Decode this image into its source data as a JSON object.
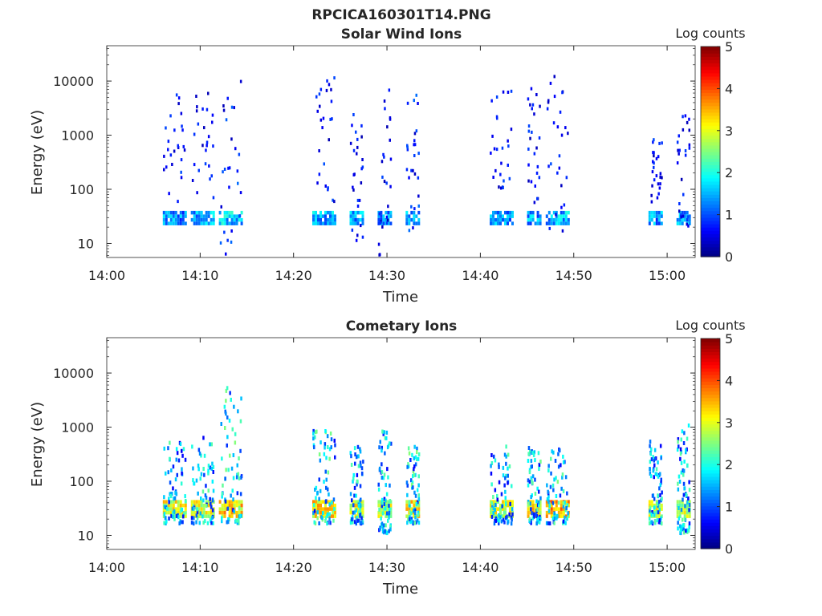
{
  "figure": {
    "title": "RPCICA160301T14.PNG"
  },
  "chart_data": [
    {
      "type": "heatmap",
      "title": "Solar Wind Ions",
      "xlabel": "Time",
      "ylabel": "Energy (eV)",
      "y_scale": "log",
      "x_range": [
        "14:00",
        "15:03"
      ],
      "y_range_eV": [
        5.5,
        45000
      ],
      "x_ticks": [
        "14:00",
        "14:10",
        "14:20",
        "14:30",
        "14:40",
        "14:50",
        "15:00"
      ],
      "y_ticks": [
        "10",
        "100",
        "1000",
        "10000"
      ],
      "colorbar": {
        "label": "Log counts",
        "range": [
          0,
          5
        ],
        "ticks": [
          "0",
          "1",
          "2",
          "3",
          "4",
          "5"
        ],
        "colormap": "jet"
      },
      "grid": false,
      "bursts": [
        {
          "start": "14:06",
          "end": "14:08",
          "band_eV": [
            25,
            40
          ],
          "band_log_counts": 1.3,
          "scatter_eV": [
            60,
            6000
          ],
          "scatter_log_counts": 0.6
        },
        {
          "start": "14:09",
          "end": "14:11",
          "band_eV": [
            25,
            40
          ],
          "band_log_counts": 1.4,
          "scatter_eV": [
            60,
            10000
          ],
          "scatter_log_counts": 0.6
        },
        {
          "start": "14:12",
          "end": "14:14",
          "band_eV": [
            25,
            40
          ],
          "band_log_counts": 1.6,
          "scatter_eV": [
            6,
            14000
          ],
          "scatter_log_counts": 0.7
        },
        {
          "start": "14:22",
          "end": "14:24",
          "band_eV": [
            25,
            40
          ],
          "band_log_counts": 1.5,
          "scatter_eV": [
            60,
            13000
          ],
          "scatter_log_counts": 0.6
        },
        {
          "start": "14:26",
          "end": "14:27",
          "band_eV": [
            25,
            40
          ],
          "band_log_counts": 1.4,
          "scatter_eV": [
            12,
            4000
          ],
          "scatter_log_counts": 0.6
        },
        {
          "start": "14:29",
          "end": "14:30",
          "band_eV": [
            25,
            40
          ],
          "band_log_counts": 1.4,
          "scatter_eV": [
            6,
            10000
          ],
          "scatter_log_counts": 0.6
        },
        {
          "start": "14:32",
          "end": "14:33",
          "band_eV": [
            25,
            40
          ],
          "band_log_counts": 1.5,
          "scatter_eV": [
            15,
            6000
          ],
          "scatter_log_counts": 0.7
        },
        {
          "start": "14:41",
          "end": "14:43",
          "band_eV": [
            25,
            40
          ],
          "band_log_counts": 1.3,
          "scatter_eV": [
            80,
            8000
          ],
          "scatter_log_counts": 0.6
        },
        {
          "start": "14:45",
          "end": "14:46",
          "band_eV": [
            25,
            40
          ],
          "band_log_counts": 1.4,
          "scatter_eV": [
            60,
            9000
          ],
          "scatter_log_counts": 0.6
        },
        {
          "start": "14:47",
          "end": "14:49",
          "band_eV": [
            25,
            40
          ],
          "band_log_counts": 1.5,
          "scatter_eV": [
            18,
            14000
          ],
          "scatter_log_counts": 0.6
        },
        {
          "start": "14:58",
          "end": "14:59",
          "band_eV": [
            25,
            40
          ],
          "band_log_counts": 1.3,
          "scatter_eV": [
            60,
            1000
          ],
          "scatter_log_counts": 0.6
        },
        {
          "start": "15:01",
          "end": "15:02",
          "band_eV": [
            25,
            40
          ],
          "band_log_counts": 1.4,
          "scatter_eV": [
            18,
            2500
          ],
          "scatter_log_counts": 0.6
        }
      ]
    },
    {
      "type": "heatmap",
      "title": "Cometary Ions",
      "xlabel": "Time",
      "ylabel": "Energy (eV)",
      "y_scale": "log",
      "x_range": [
        "14:00",
        "15:03"
      ],
      "y_range_eV": [
        5.5,
        45000
      ],
      "x_ticks": [
        "14:00",
        "14:10",
        "14:20",
        "14:30",
        "14:40",
        "14:50",
        "15:00"
      ],
      "y_ticks": [
        "10",
        "100",
        "1000",
        "10000"
      ],
      "colorbar": {
        "label": "Log counts",
        "range": [
          0,
          5
        ],
        "ticks": [
          "0",
          "1",
          "2",
          "3",
          "4",
          "5"
        ],
        "colormap": "jet"
      },
      "grid": false,
      "bursts": [
        {
          "start": "14:06",
          "end": "14:08",
          "band_eV": [
            22,
            45
          ],
          "band_log_counts": 3.0,
          "scatter_eV": [
            18,
            600
          ],
          "scatter_log_counts": 1.4
        },
        {
          "start": "14:09",
          "end": "14:11",
          "band_eV": [
            22,
            45
          ],
          "band_log_counts": 3.0,
          "scatter_eV": [
            18,
            700
          ],
          "scatter_log_counts": 1.4
        },
        {
          "start": "14:12",
          "end": "14:14",
          "band_eV": [
            22,
            45
          ],
          "band_log_counts": 3.3,
          "scatter_eV": [
            18,
            6000
          ],
          "scatter_log_counts": 1.5
        },
        {
          "start": "14:22",
          "end": "14:24",
          "band_eV": [
            22,
            45
          ],
          "band_log_counts": 3.2,
          "scatter_eV": [
            18,
            1100
          ],
          "scatter_log_counts": 1.5
        },
        {
          "start": "14:26",
          "end": "14:27",
          "band_eV": [
            22,
            45
          ],
          "band_log_counts": 3.0,
          "scatter_eV": [
            18,
            500
          ],
          "scatter_log_counts": 1.4
        },
        {
          "start": "14:29",
          "end": "14:30",
          "band_eV": [
            22,
            45
          ],
          "band_log_counts": 2.8,
          "scatter_eV": [
            12,
            1200
          ],
          "scatter_log_counts": 1.4
        },
        {
          "start": "14:32",
          "end": "14:33",
          "band_eV": [
            22,
            45
          ],
          "band_log_counts": 3.1,
          "scatter_eV": [
            18,
            550
          ],
          "scatter_log_counts": 1.5
        },
        {
          "start": "14:41",
          "end": "14:43",
          "band_eV": [
            22,
            45
          ],
          "band_log_counts": 2.9,
          "scatter_eV": [
            18,
            500
          ],
          "scatter_log_counts": 1.4
        },
        {
          "start": "14:45",
          "end": "14:46",
          "band_eV": [
            22,
            45
          ],
          "band_log_counts": 3.2,
          "scatter_eV": [
            18,
            450
          ],
          "scatter_log_counts": 1.5
        },
        {
          "start": "14:47",
          "end": "14:49",
          "band_eV": [
            22,
            45
          ],
          "band_log_counts": 3.5,
          "scatter_eV": [
            18,
            500
          ],
          "scatter_log_counts": 1.5
        },
        {
          "start": "14:58",
          "end": "14:59",
          "band_eV": [
            22,
            45
          ],
          "band_log_counts": 2.9,
          "scatter_eV": [
            18,
            600
          ],
          "scatter_log_counts": 1.4
        },
        {
          "start": "15:01",
          "end": "15:02",
          "band_eV": [
            22,
            45
          ],
          "band_log_counts": 2.8,
          "scatter_eV": [
            12,
            1300
          ],
          "scatter_log_counts": 1.4
        }
      ]
    }
  ]
}
